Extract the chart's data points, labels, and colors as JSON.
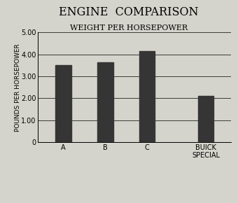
{
  "title": "ENGINE  COMPARISON",
  "subtitle": "WEIGHT PER HORSEPOWER",
  "ylabel": "POUNDS PER HORSEPOWER",
  "values": [
    3.5,
    3.63,
    4.15,
    2.1
  ],
  "bar_color": "#353535",
  "background_color": "#d4d4cc",
  "ylim": [
    0,
    5.0
  ],
  "yticks": [
    0,
    1.0,
    2.0,
    3.0,
    4.0,
    5.0
  ],
  "ytick_labels": [
    "0",
    "1.00",
    "2.00",
    "3.00",
    "4.00",
    "5.00"
  ],
  "bar_width": 0.38,
  "title_fontsize": 11.5,
  "subtitle_fontsize": 8,
  "ylabel_fontsize": 6.5,
  "tick_fontsize": 7
}
